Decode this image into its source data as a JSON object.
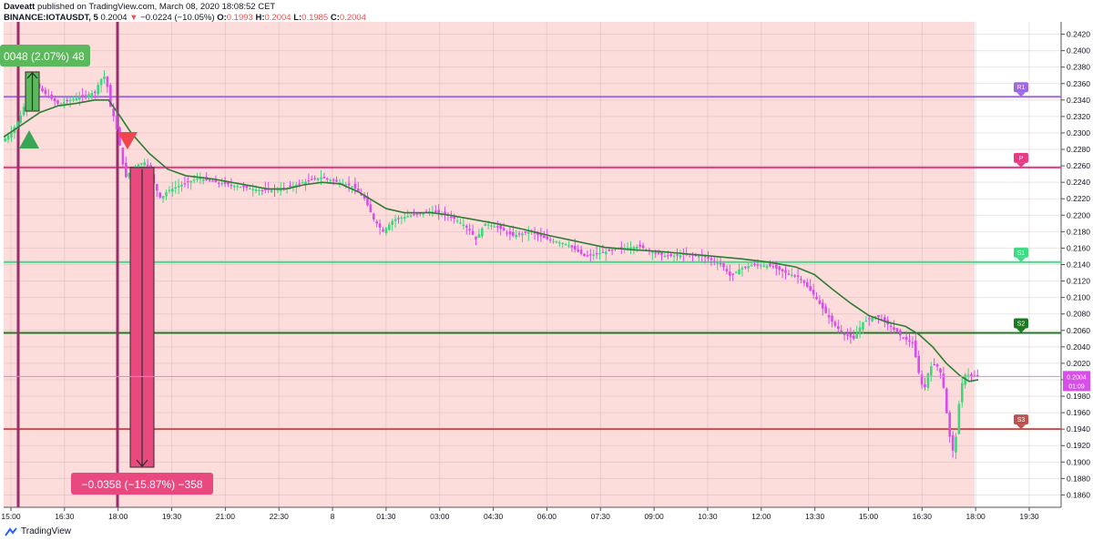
{
  "header": {
    "author": "Daveatt",
    "published_text": "published on TradingView.com, March 08, 2020 18:08:52 CET",
    "symbol_line": "BINANCE:IOTAUSDT, 5",
    "price": "0.2004",
    "change": "−0.0224 (−10.05%)",
    "o_label": "O:",
    "o": "0.1993",
    "h_label": "H:",
    "h": "0.2004",
    "l_label": "L:",
    "l": "0.1985",
    "c_label": "C:",
    "c": "0.2004"
  },
  "footer": {
    "brand": "TradingView"
  },
  "colors": {
    "background": "#fddcdc",
    "bull": "#3fd77e",
    "bear": "#d74ee8",
    "ma": "#2e7d32",
    "r1": "#9c6ade",
    "pivot": "#e73b85",
    "s1": "#3ddc84",
    "s2": "#1b7a22",
    "s3": "#c0504d",
    "long_box": "#5cb85c",
    "short_box": "#e84a7f",
    "vline": "#9b2d6b"
  },
  "chart_data": {
    "type": "candlestick",
    "title": "",
    "y_range": [
      0.1845,
      0.2435
    ],
    "x_ticks": [
      "15:00",
      "16:30",
      "18:00",
      "19:30",
      "21:00",
      "22:30",
      "8",
      "01:30",
      "03:00",
      "04:30",
      "06:00",
      "07:30",
      "09:00",
      "10:30",
      "12:00",
      "13:30",
      "15:00",
      "16:30",
      "18:00",
      "19:30"
    ],
    "y_ticks": [
      "0.2420",
      "0.2400",
      "0.2380",
      "0.2360",
      "0.2340",
      "0.2320",
      "0.2300",
      "0.2280",
      "0.2260",
      "0.2240",
      "0.2220",
      "0.2200",
      "0.2180",
      "0.2160",
      "0.2140",
      "0.2120",
      "0.2100",
      "0.2080",
      "0.2060",
      "0.2040",
      "0.2020",
      "0.2000",
      "0.1980",
      "0.1960",
      "0.1940",
      "0.1920",
      "0.1900",
      "0.1880",
      "0.1860"
    ],
    "levels": [
      {
        "label": "R1",
        "value": 0.2344,
        "color": "#9c6ade"
      },
      {
        "label": "P",
        "value": 0.2258,
        "color": "#e73b85"
      },
      {
        "label": "S1",
        "value": 0.2143,
        "color": "#3ddc84"
      },
      {
        "label": "S2",
        "value": 0.2057,
        "color": "#1b7a22"
      },
      {
        "label": "S3",
        "value": 0.194,
        "color": "#c0504d"
      }
    ],
    "last_price": {
      "value": "0.2004",
      "countdown": "01:09"
    },
    "long_measure": {
      "label": "0048 (2.07%) 48"
    },
    "short_measure": {
      "label": "−0.0358 (−15.87%) −358"
    },
    "price_path": [
      [
        0,
        0.229
      ],
      [
        10,
        0.23
      ],
      [
        20,
        0.232
      ],
      [
        28,
        0.2345
      ],
      [
        34,
        0.236
      ],
      [
        40,
        0.2355
      ],
      [
        50,
        0.2345
      ],
      [
        62,
        0.2335
      ],
      [
        75,
        0.234
      ],
      [
        90,
        0.2345
      ],
      [
        102,
        0.235
      ],
      [
        108,
        0.2365
      ],
      [
        114,
        0.237
      ],
      [
        118,
        0.2335
      ],
      [
        124,
        0.2315
      ],
      [
        130,
        0.228
      ],
      [
        135,
        0.2245
      ],
      [
        142,
        0.2255
      ],
      [
        150,
        0.2262
      ],
      [
        158,
        0.2265
      ],
      [
        166,
        0.224
      ],
      [
        174,
        0.222
      ],
      [
        182,
        0.223
      ],
      [
        195,
        0.2236
      ],
      [
        215,
        0.2245
      ],
      [
        235,
        0.224
      ],
      [
        260,
        0.2235
      ],
      [
        285,
        0.223
      ],
      [
        310,
        0.2232
      ],
      [
        330,
        0.224
      ],
      [
        350,
        0.2246
      ],
      [
        370,
        0.224
      ],
      [
        385,
        0.2235
      ],
      [
        398,
        0.222
      ],
      [
        408,
        0.2195
      ],
      [
        418,
        0.218
      ],
      [
        430,
        0.2195
      ],
      [
        450,
        0.22
      ],
      [
        470,
        0.2205
      ],
      [
        490,
        0.22
      ],
      [
        505,
        0.219
      ],
      [
        515,
        0.218
      ],
      [
        520,
        0.217
      ],
      [
        530,
        0.219
      ],
      [
        545,
        0.2185
      ],
      [
        560,
        0.2175
      ],
      [
        580,
        0.218
      ],
      [
        600,
        0.217
      ],
      [
        620,
        0.2165
      ],
      [
        640,
        0.215
      ],
      [
        660,
        0.2155
      ],
      [
        680,
        0.216
      ],
      [
        700,
        0.2162
      ],
      [
        715,
        0.2155
      ],
      [
        730,
        0.215
      ],
      [
        750,
        0.2152
      ],
      [
        770,
        0.215
      ],
      [
        790,
        0.214
      ],
      [
        800,
        0.2125
      ],
      [
        810,
        0.2135
      ],
      [
        825,
        0.214
      ],
      [
        845,
        0.2138
      ],
      [
        860,
        0.213
      ],
      [
        875,
        0.2125
      ],
      [
        890,
        0.2105
      ],
      [
        905,
        0.208
      ],
      [
        915,
        0.2065
      ],
      [
        925,
        0.2055
      ],
      [
        935,
        0.205
      ],
      [
        945,
        0.207
      ],
      [
        960,
        0.2078
      ],
      [
        975,
        0.2065
      ],
      [
        990,
        0.205
      ],
      [
        1000,
        0.2045
      ],
      [
        1006,
        0.201
      ],
      [
        1012,
        0.1985
      ],
      [
        1018,
        0.2015
      ],
      [
        1025,
        0.202
      ],
      [
        1032,
        0.2005
      ],
      [
        1038,
        0.195
      ],
      [
        1043,
        0.191
      ],
      [
        1048,
        0.1935
      ],
      [
        1052,
        0.199
      ],
      [
        1058,
        0.2008
      ],
      [
        1064,
        0.2004
      ],
      [
        1070,
        0.2004
      ]
    ],
    "ma_path": [
      [
        0,
        0.2295
      ],
      [
        20,
        0.231
      ],
      [
        40,
        0.2325
      ],
      [
        60,
        0.2333
      ],
      [
        80,
        0.2336
      ],
      [
        100,
        0.234
      ],
      [
        115,
        0.234
      ],
      [
        125,
        0.2325
      ],
      [
        140,
        0.23
      ],
      [
        160,
        0.2275
      ],
      [
        180,
        0.2256
      ],
      [
        200,
        0.2248
      ],
      [
        230,
        0.2244
      ],
      [
        260,
        0.2238
      ],
      [
        290,
        0.2232
      ],
      [
        310,
        0.2232
      ],
      [
        330,
        0.2237
      ],
      [
        350,
        0.224
      ],
      [
        370,
        0.2238
      ],
      [
        390,
        0.2228
      ],
      [
        405,
        0.2218
      ],
      [
        420,
        0.2208
      ],
      [
        440,
        0.2203
      ],
      [
        470,
        0.2203
      ],
      [
        490,
        0.22
      ],
      [
        510,
        0.2196
      ],
      [
        540,
        0.219
      ],
      [
        570,
        0.2183
      ],
      [
        600,
        0.2175
      ],
      [
        630,
        0.2168
      ],
      [
        660,
        0.2161
      ],
      [
        690,
        0.2158
      ],
      [
        720,
        0.2156
      ],
      [
        750,
        0.2153
      ],
      [
        780,
        0.215
      ],
      [
        810,
        0.2147
      ],
      [
        840,
        0.2143
      ],
      [
        870,
        0.2137
      ],
      [
        890,
        0.2128
      ],
      [
        910,
        0.211
      ],
      [
        930,
        0.2093
      ],
      [
        950,
        0.2078
      ],
      [
        970,
        0.207
      ],
      [
        990,
        0.2065
      ],
      [
        1005,
        0.2055
      ],
      [
        1020,
        0.204
      ],
      [
        1035,
        0.202
      ],
      [
        1050,
        0.2005
      ],
      [
        1060,
        0.1998
      ],
      [
        1070,
        0.2
      ]
    ]
  }
}
